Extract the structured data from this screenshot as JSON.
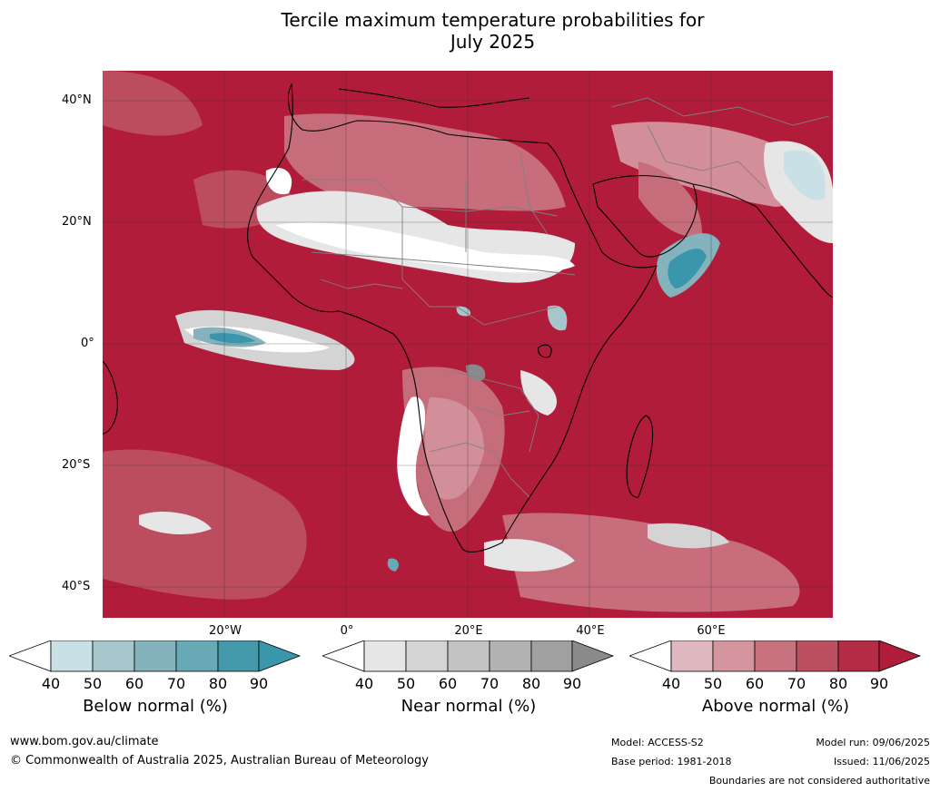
{
  "title_line1": "Tercile maximum temperature probabilities for",
  "title_line2": "July 2025",
  "map": {
    "lat_labels": [
      "40°N",
      "20°N",
      "0°",
      "20°S",
      "40°S"
    ],
    "lon_labels": [
      "20°W",
      "0°",
      "20°E",
      "40°E",
      "60°E"
    ],
    "colors": {
      "above": [
        "#e0b8bf",
        "#d4959f",
        "#c8727f",
        "#bc5061",
        "#b42c45",
        "#b01c39"
      ],
      "near": [
        "#e6e6e6",
        "#d4d4d4",
        "#c3c3c3",
        "#b2b2b2",
        "#a0a0a0",
        "#8a8a8a"
      ],
      "below": [
        "#c9e0e6",
        "#a6c6cc",
        "#85b3bd",
        "#67a9b6",
        "#4398aa",
        "#3a97ab"
      ]
    }
  },
  "colorbars": [
    {
      "label": "Below normal (%)",
      "ticks": [
        "40",
        "50",
        "60",
        "70",
        "80",
        "90"
      ],
      "colors": [
        "#c9e0e6",
        "#a6c6cc",
        "#85b3bd",
        "#67a9b6",
        "#4398aa"
      ],
      "extend_color": "#3a97ab"
    },
    {
      "label": "Near normal (%)",
      "ticks": [
        "40",
        "50",
        "60",
        "70",
        "80",
        "90"
      ],
      "colors": [
        "#e6e6e6",
        "#d4d4d4",
        "#c3c3c3",
        "#b2b2b2",
        "#a0a0a0"
      ],
      "extend_color": "#8a8a8a"
    },
    {
      "label": "Above normal (%)",
      "ticks": [
        "40",
        "50",
        "60",
        "70",
        "80",
        "90"
      ],
      "colors": [
        "#e0b8bf",
        "#d4959f",
        "#c8727f",
        "#bc5061",
        "#b42c45"
      ],
      "extend_color": "#b01c39"
    }
  ],
  "footer": {
    "website": "www.bom.gov.au/climate",
    "copyright": "© Commonwealth of Australia 2025, Australian Bureau of Meteorology",
    "model": "Model: ACCESS-S2",
    "base_period": "Base period: 1981-2018",
    "model_run": "Model run: 09/06/2025",
    "issued": "Issued: 11/06/2025",
    "boundaries": "Boundaries are not considered authoritative"
  }
}
